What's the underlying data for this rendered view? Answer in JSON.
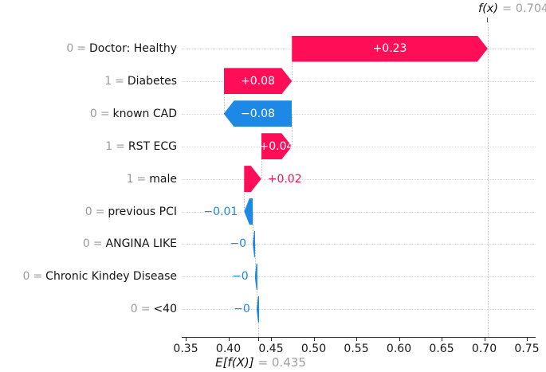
{
  "annotations": {
    "fx": {
      "name": "f(x)",
      "value_text": "= 0.704"
    },
    "ef": {
      "name": "E[f(X)]",
      "value_text": "= 0.435"
    }
  },
  "eq_sign": "=",
  "chart_data": {
    "type": "bar",
    "variant": "shap-waterfall",
    "title": "",
    "xlabel": "E[f(X)] = 0.435",
    "base_value": 0.435,
    "fx_value": 0.704,
    "xlim": [
      0.3453,
      0.7603
    ],
    "grid": "dotted-horizontal-per-row",
    "colors": {
      "positive": "#ff0d57",
      "negative": "#1e88e5"
    },
    "x_ticks": [
      "0.35",
      "0.40",
      "0.45",
      "0.50",
      "0.55",
      "0.60",
      "0.65",
      "0.70",
      "0.75"
    ],
    "x_tick_values": [
      0.35,
      0.4,
      0.45,
      0.5,
      0.55,
      0.6,
      0.65,
      0.7,
      0.75
    ],
    "rows": [
      {
        "feature_value": "0",
        "feature": "Doctor: Healthy",
        "shap_label": "+0.23",
        "shap": 0.2295,
        "start": 0.4745,
        "end": 0.704,
        "sign": "positive",
        "label_placement": "inside"
      },
      {
        "feature_value": "1",
        "feature": "Diabetes",
        "shap_label": "+0.08",
        "shap": 0.08,
        "start": 0.3945,
        "end": 0.4745,
        "sign": "positive",
        "label_placement": "inside"
      },
      {
        "feature_value": "0",
        "feature": "known CAD",
        "shap_label": "−0.08",
        "shap": -0.08,
        "start": 0.4745,
        "end": 0.3945,
        "sign": "negative",
        "label_placement": "inside"
      },
      {
        "feature_value": "1",
        "feature": "RST ECG",
        "shap_label": "+0.04",
        "shap": 0.036,
        "start": 0.4385,
        "end": 0.4745,
        "sign": "positive",
        "label_placement": "inside"
      },
      {
        "feature_value": "1",
        "feature": "male",
        "shap_label": "+0.02",
        "shap": 0.02,
        "start": 0.4185,
        "end": 0.4385,
        "sign": "positive",
        "label_placement": "outside"
      },
      {
        "feature_value": "0",
        "feature": "previous PCI",
        "shap_label": "−0.01",
        "shap": -0.01,
        "start": 0.4285,
        "end": 0.4185,
        "sign": "negative",
        "label_placement": "outside"
      },
      {
        "feature_value": "0",
        "feature": "ANGINA LIKE",
        "shap_label": "−0",
        "shap": -0.0025,
        "start": 0.431,
        "end": 0.4285,
        "sign": "negative",
        "label_placement": "outside"
      },
      {
        "feature_value": "0",
        "feature": "Chronic Kindey Disease",
        "shap_label": "−0",
        "shap": -0.002,
        "start": 0.433,
        "end": 0.431,
        "sign": "negative",
        "label_placement": "outside"
      },
      {
        "feature_value": "0",
        "feature": "<40",
        "shap_label": "−0",
        "shap": -0.002,
        "start": 0.435,
        "end": 0.433,
        "sign": "negative",
        "label_placement": "outside"
      }
    ]
  }
}
